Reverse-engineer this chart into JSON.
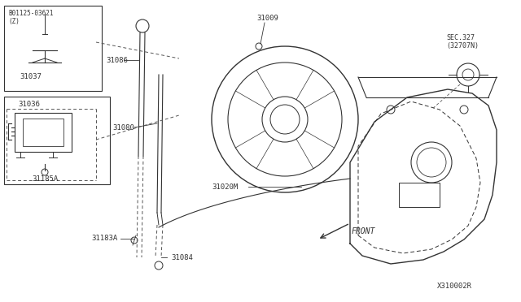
{
  "bg_color": "#ffffff",
  "line_color": "#333333",
  "fig_width": 6.4,
  "fig_height": 3.72,
  "dpi": 100,
  "diagram_id": "X310002R",
  "labels": {
    "B_bolt": "B01125-03621\n(Z)",
    "31037": "31037",
    "31036": "31036",
    "31185A": "31185A",
    "31086": "31086",
    "31009": "31009",
    "31080": "31080",
    "31020M": "31020M",
    "31183A": "31183A",
    "31084": "31084",
    "SEC327": "SEC.327\n(32707N)",
    "FRONT": "FRONT"
  }
}
